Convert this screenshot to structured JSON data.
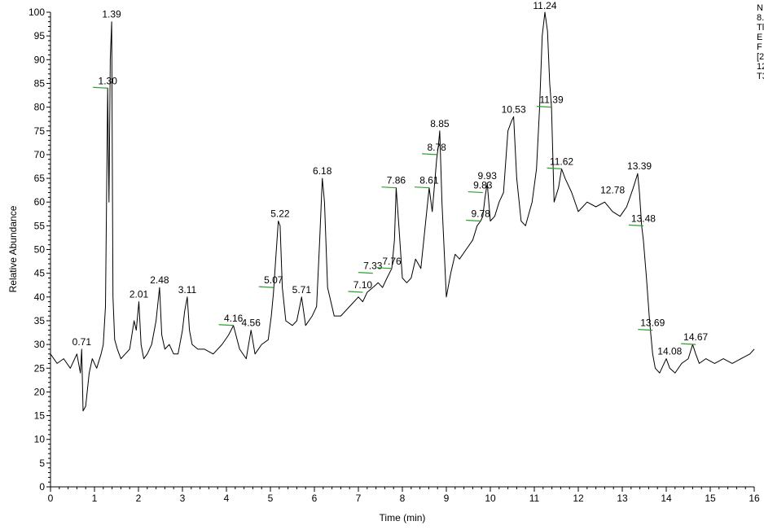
{
  "chart_data": {
    "type": "line",
    "xlabel": "Time (min)",
    "ylabel": "Relative Abundance",
    "xlim": [
      0,
      16
    ],
    "ylim": [
      0,
      100
    ],
    "x_ticks": [
      0,
      1,
      2,
      3,
      4,
      5,
      6,
      7,
      8,
      9,
      10,
      11,
      12,
      13,
      14,
      15,
      16
    ],
    "y_ticks": [
      0,
      5,
      10,
      15,
      20,
      25,
      30,
      35,
      40,
      45,
      50,
      55,
      60,
      65,
      70,
      75,
      80,
      85,
      90,
      95,
      100
    ],
    "grid": false,
    "line_color": "#000000",
    "marker_color": "#2ca02c",
    "info_lines": [
      "N",
      "8.",
      "Tl",
      "E",
      "F",
      "[2",
      "12",
      "T3"
    ],
    "series": [
      {
        "x": [
          0.0,
          0.15,
          0.3,
          0.45,
          0.6,
          0.68,
          0.71,
          0.74,
          0.8,
          0.88,
          0.95,
          1.05,
          1.15,
          1.2,
          1.25,
          1.3,
          1.33,
          1.36,
          1.39,
          1.42,
          1.46,
          1.52,
          1.6,
          1.7,
          1.8,
          1.9,
          1.95,
          2.01,
          2.06,
          2.12,
          2.2,
          2.3,
          2.4,
          2.48,
          2.53,
          2.6,
          2.7,
          2.8,
          2.9,
          3.0,
          3.05,
          3.11,
          3.16,
          3.22,
          3.35,
          3.5,
          3.7,
          3.9,
          4.05,
          4.16,
          4.3,
          4.45,
          4.56,
          4.65,
          4.8,
          4.95,
          5.02,
          5.07,
          5.12,
          5.18,
          5.22,
          5.27,
          5.35,
          5.5,
          5.6,
          5.71,
          5.8,
          5.95,
          6.05,
          6.12,
          6.18,
          6.23,
          6.3,
          6.45,
          6.6,
          6.8,
          7.0,
          7.1,
          7.2,
          7.33,
          7.45,
          7.55,
          7.65,
          7.76,
          7.82,
          7.86,
          7.92,
          8.0,
          8.1,
          8.2,
          8.3,
          8.42,
          8.52,
          8.61,
          8.68,
          8.78,
          8.82,
          8.85,
          8.9,
          8.95,
          9.0,
          9.1,
          9.2,
          9.3,
          9.45,
          9.6,
          9.7,
          9.78,
          9.83,
          9.88,
          9.93,
          10.0,
          10.1,
          10.2,
          10.3,
          10.4,
          10.48,
          10.53,
          10.6,
          10.7,
          10.8,
          10.95,
          11.05,
          11.12,
          11.18,
          11.24,
          11.3,
          11.35,
          11.39,
          11.45,
          11.55,
          11.62,
          11.7,
          11.85,
          12.0,
          12.2,
          12.4,
          12.6,
          12.78,
          12.95,
          13.1,
          13.25,
          13.35,
          13.39,
          13.44,
          13.48,
          13.55,
          13.62,
          13.69,
          13.75,
          13.85,
          13.95,
          14.0,
          14.08,
          14.2,
          14.35,
          14.5,
          14.6,
          14.67,
          14.75,
          14.9,
          15.1,
          15.3,
          15.5,
          15.7,
          15.9,
          16.0
        ],
        "y": [
          28,
          26,
          27,
          25,
          28,
          24,
          29,
          16,
          17,
          24,
          27,
          25,
          28,
          30,
          38,
          84,
          60,
          90,
          98,
          40,
          31,
          29,
          27,
          28,
          29,
          35,
          33,
          39,
          30,
          27,
          28,
          30,
          35,
          42,
          32,
          29,
          30,
          28,
          28,
          33,
          37,
          40,
          33,
          30,
          29,
          29,
          28,
          30,
          32,
          34,
          29,
          27,
          33,
          28,
          30,
          31,
          36,
          41,
          48,
          56,
          55,
          42,
          35,
          34,
          35,
          40,
          34,
          36,
          38,
          52,
          65,
          60,
          42,
          36,
          36,
          38,
          40,
          39,
          41,
          42,
          43,
          42,
          44,
          46,
          52,
          63,
          55,
          44,
          43,
          44,
          48,
          46,
          55,
          63,
          58,
          69,
          72,
          75,
          60,
          50,
          40,
          45,
          49,
          48,
          50,
          52,
          55,
          56,
          57,
          61,
          64,
          56,
          57,
          60,
          62,
          75,
          77,
          78,
          65,
          56,
          55,
          60,
          67,
          80,
          95,
          100,
          96,
          85,
          80,
          60,
          63,
          67,
          65,
          62,
          58,
          60,
          59,
          60,
          58,
          57,
          59,
          63,
          66,
          62,
          55,
          52,
          44,
          35,
          28,
          25,
          24,
          26,
          27,
          25,
          24,
          26,
          27,
          30,
          28,
          26,
          27,
          26,
          27,
          26,
          27,
          28,
          29
        ]
      }
    ],
    "peak_labels": [
      {
        "text": "0.71",
        "x": 0.71,
        "y": 29,
        "marker": false
      },
      {
        "text": "1.30",
        "x": 1.3,
        "y": 84,
        "marker": true
      },
      {
        "text": "1.39",
        "x": 1.39,
        "y": 98,
        "marker": false
      },
      {
        "text": "2.01",
        "x": 2.01,
        "y": 39,
        "marker": false
      },
      {
        "text": "2.48",
        "x": 2.48,
        "y": 42,
        "marker": false
      },
      {
        "text": "3.11",
        "x": 3.11,
        "y": 40,
        "marker": false
      },
      {
        "text": "4.16",
        "x": 4.16,
        "y": 34,
        "marker": true
      },
      {
        "text": "4.56",
        "x": 4.56,
        "y": 33,
        "marker": false
      },
      {
        "text": "5.07",
        "x": 5.07,
        "y": 42,
        "marker": true
      },
      {
        "text": "5.22",
        "x": 5.22,
        "y": 56,
        "marker": false
      },
      {
        "text": "5.71",
        "x": 5.71,
        "y": 40,
        "marker": false
      },
      {
        "text": "6.18",
        "x": 6.18,
        "y": 65,
        "marker": false
      },
      {
        "text": "7.10",
        "x": 7.1,
        "y": 41,
        "marker": true
      },
      {
        "text": "7.33",
        "x": 7.33,
        "y": 45,
        "marker": true
      },
      {
        "text": "7.76",
        "x": 7.76,
        "y": 46,
        "marker": true
      },
      {
        "text": "7.86",
        "x": 7.86,
        "y": 63,
        "marker": true
      },
      {
        "text": "8.61",
        "x": 8.61,
        "y": 63,
        "marker": true
      },
      {
        "text": "8.78",
        "x": 8.78,
        "y": 70,
        "marker": true
      },
      {
        "text": "8.85",
        "x": 8.85,
        "y": 75,
        "marker": false
      },
      {
        "text": "9.78",
        "x": 9.78,
        "y": 56,
        "marker": true
      },
      {
        "text": "9.83",
        "x": 9.83,
        "y": 62,
        "marker": true
      },
      {
        "text": "9.93",
        "x": 9.93,
        "y": 64,
        "marker": false
      },
      {
        "text": "10.53",
        "x": 10.53,
        "y": 78,
        "marker": false
      },
      {
        "text": "11.24",
        "x": 11.24,
        "y": 100,
        "marker": false
      },
      {
        "text": "11.39",
        "x": 11.39,
        "y": 80,
        "marker": true
      },
      {
        "text": "11.62",
        "x": 11.62,
        "y": 67,
        "marker": true
      },
      {
        "text": "12.78",
        "x": 12.78,
        "y": 61,
        "marker": false
      },
      {
        "text": "13.39",
        "x": 13.39,
        "y": 66,
        "marker": false
      },
      {
        "text": "13.48",
        "x": 13.48,
        "y": 55,
        "marker": true
      },
      {
        "text": "13.69",
        "x": 13.69,
        "y": 33,
        "marker": true
      },
      {
        "text": "14.08",
        "x": 14.08,
        "y": 27,
        "marker": false
      },
      {
        "text": "14.67",
        "x": 14.67,
        "y": 30,
        "marker": true
      }
    ]
  }
}
